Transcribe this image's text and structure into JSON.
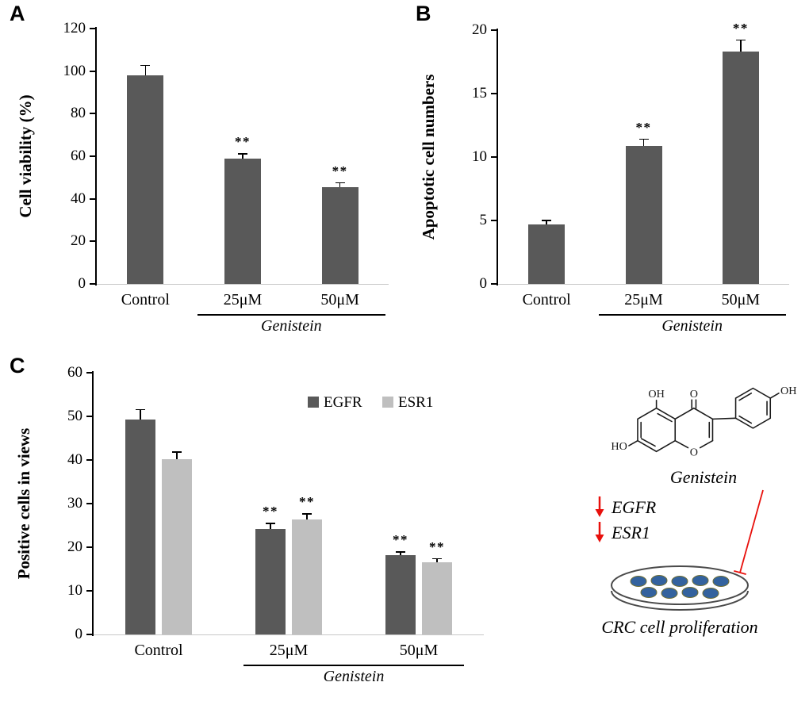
{
  "figure": {
    "panel_labels": [
      "A",
      "B",
      "C"
    ]
  },
  "chart_data": [
    {
      "id": "A",
      "type": "bar",
      "panel_label": "A",
      "ylabel": "Cell viability (%)",
      "ylim": [
        0,
        120
      ],
      "ystep": 20,
      "grid": false,
      "categories": [
        "Control",
        "25μM",
        "50μM"
      ],
      "series": [
        {
          "name": "",
          "color": "#595959",
          "values": [
            98,
            59,
            45.5
          ],
          "errors": [
            4.5,
            2,
            2
          ],
          "sig_labels": [
            "",
            "**",
            "**"
          ]
        }
      ],
      "group_label": "Genistein",
      "legend": false
    },
    {
      "id": "B",
      "type": "bar",
      "panel_label": "B",
      "ylabel": "Apoptotic cell numbers",
      "ylim": [
        0,
        20
      ],
      "ystep": 5,
      "grid": false,
      "categories": [
        "Control",
        "25μM",
        "50μM"
      ],
      "series": [
        {
          "name": "",
          "color": "#595959",
          "values": [
            4.7,
            10.9,
            18.3
          ],
          "errors": [
            0.3,
            0.5,
            0.9
          ],
          "sig_labels": [
            "",
            "**",
            "**"
          ]
        }
      ],
      "group_label": "Genistein",
      "legend": false
    },
    {
      "id": "C",
      "type": "bar",
      "panel_label": "C",
      "ylabel": "Positive cells in views",
      "ylim": [
        0,
        60
      ],
      "ystep": 10,
      "grid": false,
      "categories": [
        "Control",
        "25μM",
        "50μM"
      ],
      "series": [
        {
          "name": "EGFR",
          "color": "#595959",
          "values": [
            49.2,
            24.2,
            18.1
          ],
          "errors": [
            2.3,
            1.2,
            0.8
          ],
          "sig_labels": [
            "",
            "**",
            "**"
          ]
        },
        {
          "name": "ESR1",
          "color": "#bfbfbf",
          "values": [
            40.1,
            26.3,
            16.5
          ],
          "errors": [
            1.7,
            1.3,
            0.8
          ],
          "sig_labels": [
            "",
            "**",
            "**"
          ]
        }
      ],
      "group_label": "Genistein",
      "legend": true,
      "legend_position": "top-right"
    }
  ],
  "diagram": {
    "molecule_label": "Genistein",
    "atoms": {
      "oh_top": "OH",
      "o_carbonyl": "O",
      "ho_left": "HO",
      "o_ring": "O",
      "oh_phenyl": "OH"
    },
    "downregulated_genes": [
      "EGFR",
      "ESR1"
    ],
    "dish_label": "CRC cell proliferation",
    "arrow_color": "#e8100c",
    "cell_color": "#33629e"
  },
  "colors": {
    "bar_dark": "#595959",
    "bar_light": "#bfbfbf",
    "axis": "#000000",
    "baseline": "#c8c8c8",
    "error_bar": "#000000"
  }
}
